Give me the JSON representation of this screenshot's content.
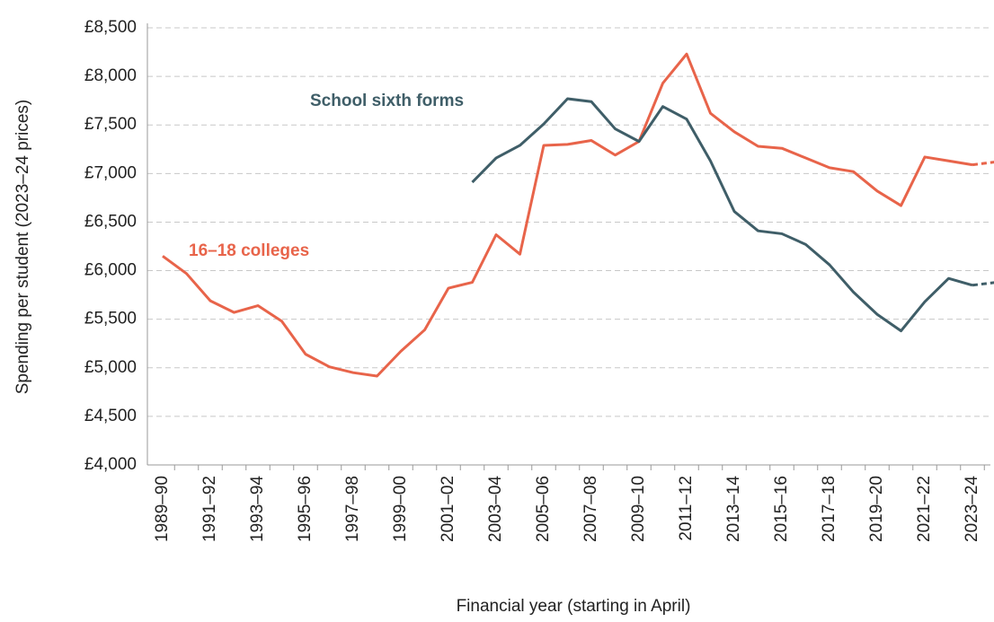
{
  "chart_data": {
    "type": "line",
    "y_axis_label": "Spending per student (2023–24 prices)",
    "x_axis_label": "Financial year (starting in April)",
    "categories": [
      "1989–90",
      null,
      "1991–92",
      null,
      "1993–94",
      null,
      "1995–96",
      null,
      "1997–98",
      null,
      "1999–00",
      null,
      "2001–02",
      null,
      "2003–04",
      null,
      "2005–06",
      null,
      "2007–08",
      null,
      "2009–10",
      null,
      "2011–12",
      null,
      "2013–14",
      null,
      "2015–16",
      null,
      "2017–18",
      null,
      "2019–20",
      null,
      "2021–22",
      null,
      "2023–24",
      null
    ],
    "series": [
      {
        "name": "16–18 colleges",
        "color": "#e8644a",
        "dash_last_segment": true,
        "values": [
          6150,
          5970,
          5690,
          5570,
          5640,
          5480,
          5140,
          5010,
          4950,
          4915,
          5170,
          5390,
          5820,
          5880,
          6370,
          6170,
          7290,
          7300,
          7340,
          7190,
          7330,
          7930,
          8230,
          7620,
          7430,
          7280,
          7260,
          7160,
          7060,
          7020,
          6820,
          6670,
          7170,
          7130,
          7090,
          7120
        ]
      },
      {
        "name": "School sixth forms",
        "color": "#3f5e68",
        "dash_last_segment": true,
        "values": [
          null,
          null,
          null,
          null,
          null,
          null,
          null,
          null,
          null,
          null,
          null,
          null,
          null,
          6910,
          7160,
          7290,
          7510,
          7770,
          7740,
          7460,
          7330,
          7690,
          7560,
          7130,
          6610,
          6410,
          6380,
          6270,
          6060,
          5780,
          5550,
          5380,
          5680,
          5920,
          5850,
          5880
        ]
      }
    ],
    "ylim": [
      4000,
      8500
    ],
    "yticks": [
      {
        "value": 4000,
        "label": "£4,000"
      },
      {
        "value": 4500,
        "label": "£4,500"
      },
      {
        "value": 5000,
        "label": "£5,000"
      },
      {
        "value": 5500,
        "label": "£5,500"
      },
      {
        "value": 6000,
        "label": "£6,000"
      },
      {
        "value": 6500,
        "label": "£6,500"
      },
      {
        "value": 7000,
        "label": "£7,000"
      },
      {
        "value": 7500,
        "label": "£7,500"
      },
      {
        "value": 8000,
        "label": "£8,000"
      },
      {
        "value": 8500,
        "label": "£8,500"
      }
    ],
    "grid": true
  }
}
